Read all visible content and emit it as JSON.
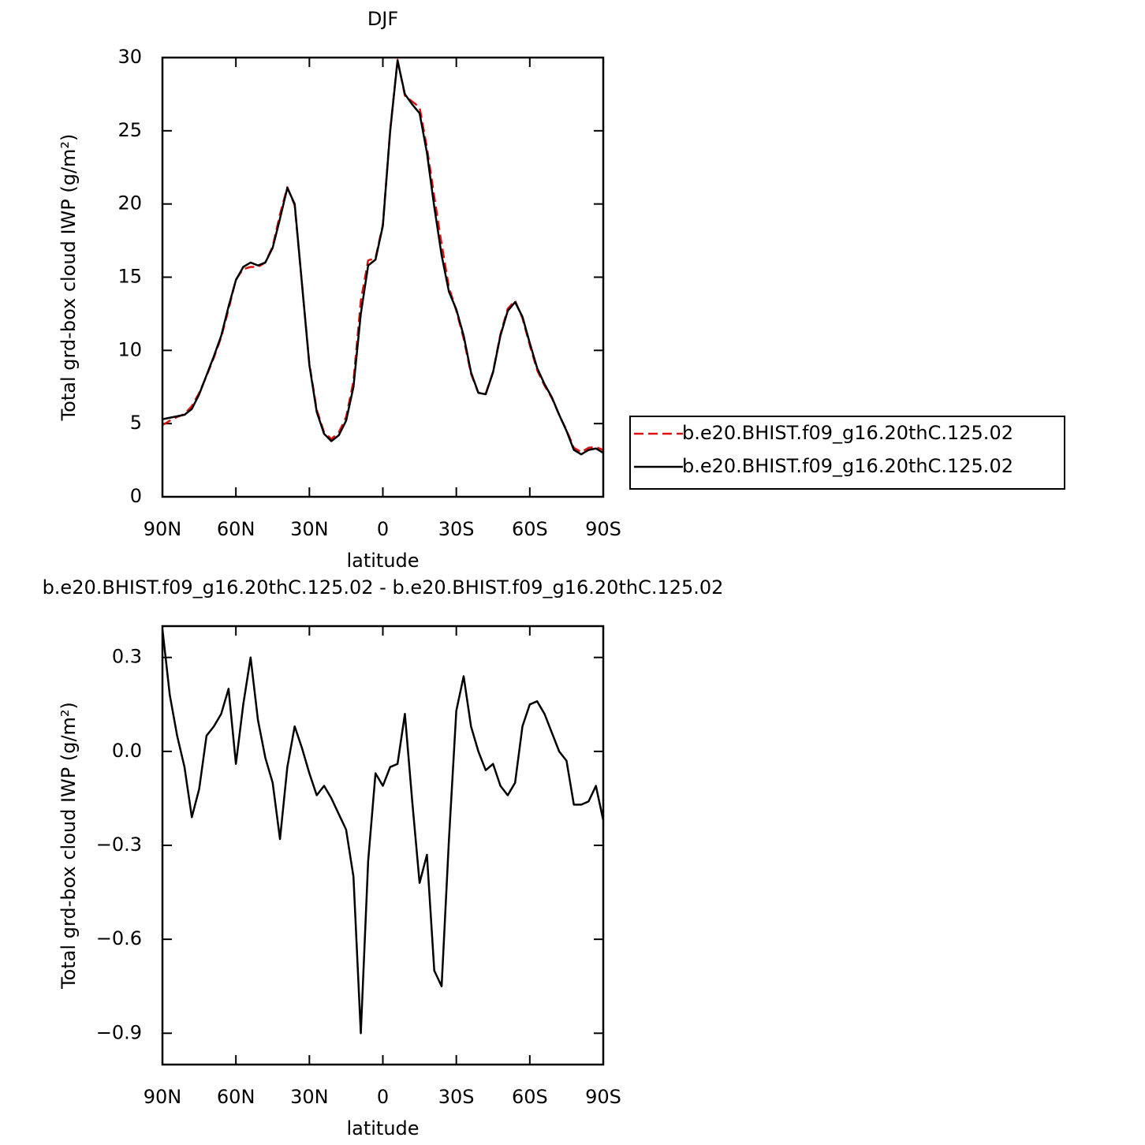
{
  "chart_data": [
    {
      "type": "line",
      "title": "DJF",
      "x_label": "latitude",
      "y_label": "Total grd-box cloud IWP (g/m²)",
      "x": [
        90,
        87,
        84,
        81,
        78,
        75,
        72,
        69,
        66,
        63,
        60,
        57,
        54,
        51,
        48,
        45,
        42,
        39,
        36,
        33,
        30,
        27,
        24,
        21,
        18,
        15,
        12,
        9,
        6,
        3,
        0,
        -3,
        -6,
        -9,
        -12,
        -15,
        -18,
        -21,
        -24,
        -27,
        -30,
        -33,
        -36,
        -39,
        -42,
        -45,
        -48,
        -51,
        -54,
        -57,
        -60,
        -63,
        -66,
        -69,
        -72,
        -75,
        -78,
        -81,
        -84,
        -87,
        -90
      ],
      "series": [
        {
          "name": "b.e20.BHIST.f09_g16.20thC.125.02",
          "color": "#e01010",
          "dashed": true,
          "values": [
            4.9,
            5.2,
            5.45,
            5.65,
            6.2,
            7.1,
            8.25,
            9.5,
            10.9,
            12.8,
            14.85,
            15.55,
            15.7,
            15.7,
            16.0,
            17.1,
            19.3,
            21.15,
            19.9,
            14.5,
            9.1,
            5.95,
            4.4,
            3.95,
            4.4,
            5.45,
            7.9,
            13.4,
            16.15,
            16.3,
            18.6,
            25.05,
            29.85,
            27.4,
            27.0,
            26.6,
            23.85,
            20.5,
            17.25,
            14.3,
            12.7,
            10.8,
            8.4,
            7.1,
            7.05,
            8.55,
            11.1,
            12.85,
            13.4,
            12.2,
            10.35,
            8.65,
            7.6,
            6.75,
            5.6,
            4.55,
            3.35,
            3.05,
            3.35,
            3.4,
            3.2
          ]
        },
        {
          "name": "b.e20.BHIST.f09_g16.20thC.125.02",
          "color": "#000000",
          "dashed": false,
          "values": [
            5.3,
            5.4,
            5.5,
            5.6,
            6.0,
            7.0,
            8.3,
            9.6,
            11.0,
            13.0,
            14.8,
            15.7,
            16.0,
            15.8,
            16.0,
            17.0,
            19.0,
            21.1,
            20.0,
            14.5,
            9.0,
            5.8,
            4.3,
            3.8,
            4.2,
            5.2,
            7.5,
            12.5,
            15.8,
            16.2,
            18.5,
            25.0,
            29.8,
            27.5,
            26.8,
            26.2,
            23.5,
            19.8,
            16.5,
            14.0,
            12.8,
            11.0,
            8.5,
            7.1,
            7.0,
            8.5,
            11.0,
            12.7,
            13.3,
            12.3,
            10.5,
            8.8,
            7.7,
            6.8,
            5.6,
            4.5,
            3.2,
            2.9,
            3.2,
            3.3,
            3.0
          ]
        }
      ],
      "xlim": [
        90,
        -90
      ],
      "xticks": [
        {
          "value": 90,
          "label": "90N"
        },
        {
          "value": 60,
          "label": "60N"
        },
        {
          "value": 30,
          "label": "30N"
        },
        0,
        {
          "value": -30,
          "label": "30S"
        },
        {
          "value": -60,
          "label": "60S"
        },
        {
          "value": -90,
          "label": "90S"
        }
      ],
      "ylim": [
        0,
        30
      ],
      "yticks": [
        0,
        5,
        10,
        15,
        20,
        25,
        30
      ],
      "legend": "right"
    },
    {
      "type": "line",
      "title": "b.e20.BHIST.f09_g16.20thC.125.02 - b.e20.BHIST.f09_g16.20thC.125.02",
      "x_label": "latitude",
      "y_label": "Total grd-box cloud IWP (g/m²)",
      "x": [
        90,
        87,
        84,
        81,
        78,
        75,
        72,
        69,
        66,
        63,
        60,
        57,
        54,
        51,
        48,
        45,
        42,
        39,
        36,
        33,
        30,
        27,
        24,
        21,
        18,
        15,
        12,
        9,
        6,
        3,
        0,
        -3,
        -6,
        -9,
        -12,
        -15,
        -18,
        -21,
        -24,
        -27,
        -30,
        -33,
        -36,
        -39,
        -42,
        -45,
        -48,
        -51,
        -54,
        -57,
        -60,
        -63,
        -66,
        -69,
        -72,
        -75,
        -78,
        -81,
        -84,
        -87,
        -90
      ],
      "color": "#000000",
      "values": [
        0.39,
        0.18,
        0.05,
        -0.05,
        -0.21,
        -0.12,
        0.05,
        0.08,
        0.12,
        0.2,
        -0.04,
        0.15,
        0.3,
        0.1,
        -0.02,
        -0.1,
        -0.28,
        -0.05,
        0.08,
        0.01,
        -0.07,
        -0.14,
        -0.11,
        -0.15,
        -0.2,
        -0.25,
        -0.4,
        -0.9,
        -0.35,
        -0.07,
        -0.11,
        -0.05,
        -0.04,
        0.12,
        -0.16,
        -0.42,
        -0.33,
        -0.7,
        -0.75,
        -0.28,
        0.13,
        0.24,
        0.08,
        0.0,
        -0.06,
        -0.04,
        -0.11,
        -0.14,
        -0.1,
        0.08,
        0.15,
        0.16,
        0.12,
        0.06,
        0.0,
        -0.03,
        -0.17,
        -0.17,
        -0.16,
        -0.11,
        -0.22
      ],
      "xlim": [
        90,
        -90
      ],
      "xticks": [
        {
          "value": 90,
          "label": "90N"
        },
        {
          "value": 60,
          "label": "60N"
        },
        {
          "value": 30,
          "label": "30N"
        },
        0,
        {
          "value": -30,
          "label": "30S"
        },
        {
          "value": -60,
          "label": "60S"
        },
        {
          "value": -90,
          "label": "90S"
        }
      ],
      "ylim": [
        -1.0,
        0.4
      ],
      "yticks": [
        {
          "value": 0.3,
          "label": "0.3"
        },
        {
          "value": 0,
          "label": "0.0"
        },
        {
          "value": -0.3,
          "label": "−0.3"
        },
        {
          "value": -0.6,
          "label": "−0.6"
        },
        {
          "value": -0.9,
          "label": "−0.9"
        }
      ]
    }
  ]
}
